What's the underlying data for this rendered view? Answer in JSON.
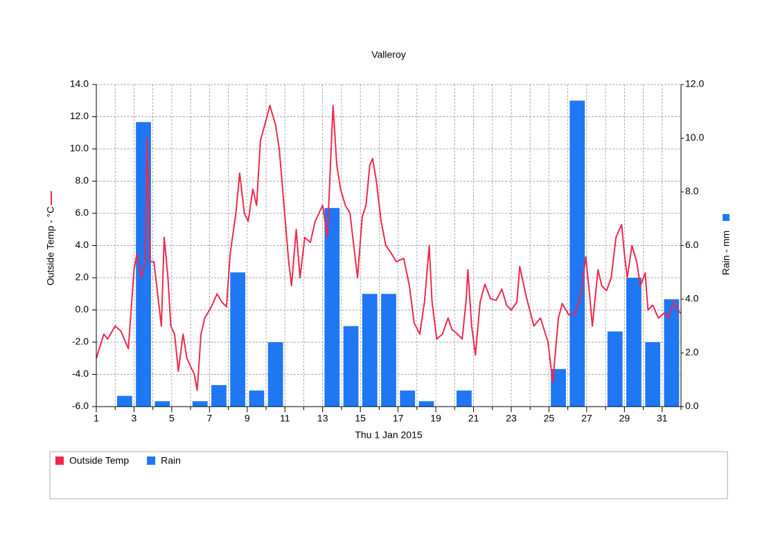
{
  "chart_data": {
    "type": "bar-line",
    "title": "Valleroy",
    "xlabel": "Thu 1 Jan 2015",
    "ylabel": "Outside Temp - °C",
    "y2label": "Rain - mm",
    "xlim": [
      1,
      32
    ],
    "xticks": [
      1,
      3,
      5,
      7,
      9,
      11,
      13,
      15,
      17,
      19,
      21,
      23,
      25,
      27,
      29,
      31
    ],
    "xminorticks": [
      2,
      4,
      6,
      8,
      10,
      12,
      14,
      16,
      18,
      20,
      22,
      24,
      26,
      28,
      30,
      32
    ],
    "ylim": [
      -6,
      14
    ],
    "yticks": [
      {
        "value": -6,
        "label": "-6.0"
      },
      {
        "value": -4,
        "label": "-4.0"
      },
      {
        "value": -2,
        "label": "-2.0"
      },
      {
        "value": 0,
        "label": "0.0"
      },
      {
        "value": 2,
        "label": "2.0"
      },
      {
        "value": 4,
        "label": "4.0"
      },
      {
        "value": 6,
        "label": "6.0"
      },
      {
        "value": 8,
        "label": "8.0"
      },
      {
        "value": 10,
        "label": "10.0"
      },
      {
        "value": 12,
        "label": "12.0"
      },
      {
        "value": 14,
        "label": "14.0"
      }
    ],
    "y2lim": [
      0,
      12
    ],
    "y2ticks": [
      {
        "value": 0,
        "label": "0.0"
      },
      {
        "value": 2,
        "label": "2.0"
      },
      {
        "value": 4,
        "label": "4.0"
      },
      {
        "value": 6,
        "label": "6.0"
      },
      {
        "value": 8,
        "label": "8.0"
      },
      {
        "value": 10,
        "label": "10.0"
      },
      {
        "value": 12,
        "label": "12.0"
      }
    ],
    "grid": true,
    "series": [
      {
        "name": "Outside Temp",
        "type": "line",
        "color": "#f0284a",
        "x": [
          1.0,
          1.4,
          1.6,
          2.0,
          2.3,
          2.7,
          3.0,
          3.15,
          3.4,
          3.6,
          3.7,
          3.85,
          4.05,
          4.3,
          4.45,
          4.6,
          4.8,
          4.95,
          5.15,
          5.35,
          5.6,
          5.8,
          6.2,
          6.35,
          6.55,
          6.75,
          7.1,
          7.4,
          7.65,
          7.9,
          8.1,
          8.4,
          8.6,
          8.85,
          9.05,
          9.3,
          9.5,
          9.7,
          10.05,
          10.2,
          10.5,
          10.7,
          10.95,
          11.2,
          11.35,
          11.6,
          11.8,
          12.05,
          12.35,
          12.6,
          12.8,
          13.0,
          13.25,
          13.55,
          13.75,
          13.95,
          14.2,
          14.45,
          14.7,
          14.85,
          15.1,
          15.3,
          15.5,
          15.65,
          15.85,
          16.1,
          16.35,
          16.65,
          16.9,
          17.3,
          17.6,
          17.85,
          18.15,
          18.4,
          18.65,
          18.8,
          19.05,
          19.35,
          19.65,
          19.85,
          20.15,
          20.4,
          20.6,
          20.7,
          20.9,
          21.1,
          21.35,
          21.6,
          21.9,
          22.2,
          22.5,
          22.75,
          23.0,
          23.3,
          23.45,
          23.8,
          24.2,
          24.55,
          24.95,
          25.2,
          25.5,
          25.7,
          26.05,
          26.4,
          26.7,
          26.95,
          27.15,
          27.3,
          27.6,
          27.8,
          28.05,
          28.3,
          28.55,
          28.85,
          29.0,
          29.15,
          29.4,
          29.65,
          29.85,
          30.1,
          30.25,
          30.5,
          30.8,
          31.1,
          31.35,
          31.6,
          31.9,
          32.0
        ],
        "values": [
          -3.0,
          -1.5,
          -1.8,
          -1.0,
          -1.3,
          -2.4,
          2.5,
          3.5,
          2.0,
          3.0,
          10.7,
          3.0,
          3.0,
          0.5,
          -1.0,
          4.5,
          2.0,
          -1.0,
          -1.5,
          -3.8,
          -1.5,
          -3.0,
          -4.0,
          -5.0,
          -1.5,
          -0.5,
          0.2,
          1.0,
          0.5,
          0.2,
          3.5,
          6.0,
          8.5,
          6.0,
          5.5,
          7.5,
          6.5,
          10.5,
          12.0,
          12.7,
          11.5,
          10.0,
          6.5,
          3.0,
          1.5,
          5.0,
          2.0,
          4.5,
          4.2,
          5.5,
          6.0,
          6.5,
          4.5,
          12.7,
          9.0,
          7.5,
          6.5,
          6.0,
          3.5,
          2.0,
          5.8,
          6.5,
          9.0,
          9.4,
          8.0,
          5.5,
          4.0,
          3.5,
          3.0,
          3.2,
          1.5,
          -0.8,
          -1.5,
          0.5,
          4.0,
          0.5,
          -1.8,
          -1.5,
          -0.5,
          -1.2,
          -1.5,
          -1.8,
          0.5,
          2.5,
          -1.0,
          -2.8,
          0.5,
          1.6,
          0.7,
          0.6,
          1.3,
          0.3,
          0.0,
          0.5,
          2.7,
          0.8,
          -1.0,
          -0.5,
          -2.0,
          -4.5,
          -0.5,
          0.4,
          -0.3,
          -0.2,
          1.0,
          3.3,
          1.0,
          -1.0,
          2.5,
          1.5,
          1.2,
          2.0,
          4.5,
          5.3,
          3.5,
          2.0,
          4.0,
          3.0,
          1.5,
          2.3,
          0.0,
          0.3,
          -0.5,
          -0.2,
          -0.5,
          0.5,
          -0.1,
          -0.2
        ]
      },
      {
        "name": "Rain",
        "type": "bar",
        "axis": "y2",
        "color": "#1f77f4",
        "x": [
          2,
          3,
          4,
          6,
          7,
          8,
          9,
          10,
          13,
          14,
          15,
          16,
          17,
          18,
          20,
          25,
          26,
          28,
          29,
          30,
          31
        ],
        "values": [
          0.4,
          10.6,
          0.2,
          0.2,
          0.8,
          5.0,
          0.6,
          2.4,
          7.4,
          3.0,
          4.2,
          4.2,
          0.6,
          0.2,
          0.6,
          1.4,
          11.4,
          2.8,
          4.8,
          2.4,
          4.0
        ]
      }
    ]
  }
}
